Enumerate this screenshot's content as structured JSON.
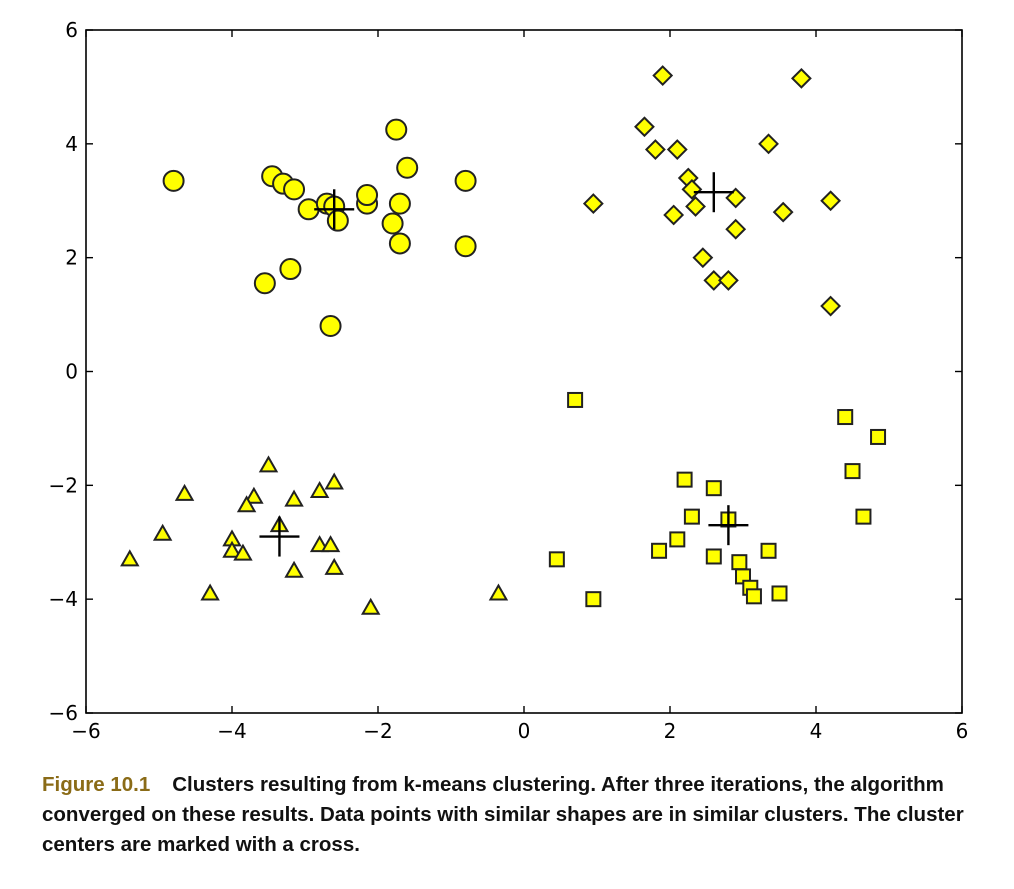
{
  "chart_data": {
    "type": "scatter",
    "xlim": [
      -6,
      6
    ],
    "ylim": [
      -6,
      6
    ],
    "grid": false,
    "x_ticks": [
      -6,
      -4,
      -2,
      0,
      2,
      4,
      6
    ],
    "y_ticks": [
      -6,
      -4,
      -2,
      0,
      2,
      4,
      6
    ],
    "x_tick_labels": [
      "−6",
      "−4",
      "−2",
      "0",
      "2",
      "4",
      "6"
    ],
    "y_tick_labels": [
      "−6",
      "−4",
      "−2",
      "0",
      "2",
      "4",
      "6"
    ],
    "marker_fill": "#ffff00",
    "marker_edge": "#222222",
    "series": [
      {
        "marker": "circle",
        "points": [
          [
            -4.8,
            3.35
          ],
          [
            -3.45,
            3.43
          ],
          [
            -3.3,
            3.3
          ],
          [
            -3.15,
            3.2
          ],
          [
            -2.95,
            2.85
          ],
          [
            -2.7,
            2.95
          ],
          [
            -2.6,
            2.9
          ],
          [
            -2.55,
            2.65
          ],
          [
            -2.15,
            2.95
          ],
          [
            -2.15,
            3.1
          ],
          [
            -1.75,
            4.25
          ],
          [
            -1.6,
            3.58
          ],
          [
            -1.7,
            2.95
          ],
          [
            -1.8,
            2.6
          ],
          [
            -1.7,
            2.25
          ],
          [
            -0.8,
            3.35
          ],
          [
            -0.8,
            2.2
          ],
          [
            -3.2,
            1.8
          ],
          [
            -3.55,
            1.55
          ],
          [
            -2.65,
            0.8
          ]
        ],
        "center": [
          -2.6,
          2.85
        ]
      },
      {
        "marker": "diamond",
        "points": [
          [
            1.9,
            5.2
          ],
          [
            3.8,
            5.15
          ],
          [
            1.65,
            4.3
          ],
          [
            1.8,
            3.9
          ],
          [
            2.1,
            3.9
          ],
          [
            3.35,
            4.0
          ],
          [
            2.25,
            3.4
          ],
          [
            2.3,
            3.2
          ],
          [
            2.35,
            2.9
          ],
          [
            2.9,
            3.05
          ],
          [
            4.2,
            3.0
          ],
          [
            0.95,
            2.95
          ],
          [
            2.05,
            2.75
          ],
          [
            3.55,
            2.8
          ],
          [
            2.9,
            2.5
          ],
          [
            2.45,
            2.0
          ],
          [
            2.6,
            1.6
          ],
          [
            2.8,
            1.6
          ],
          [
            4.2,
            1.15
          ]
        ],
        "center": [
          2.6,
          3.15
        ]
      },
      {
        "marker": "triangle",
        "points": [
          [
            -3.5,
            -1.65
          ],
          [
            -4.65,
            -2.15
          ],
          [
            -3.7,
            -2.2
          ],
          [
            -3.8,
            -2.35
          ],
          [
            -3.15,
            -2.25
          ],
          [
            -2.8,
            -2.1
          ],
          [
            -2.6,
            -1.95
          ],
          [
            -4.95,
            -2.85
          ],
          [
            -3.35,
            -2.7
          ],
          [
            -4.0,
            -2.95
          ],
          [
            -4.0,
            -3.15
          ],
          [
            -3.85,
            -3.2
          ],
          [
            -2.8,
            -3.05
          ],
          [
            -2.65,
            -3.05
          ],
          [
            -5.4,
            -3.3
          ],
          [
            -3.15,
            -3.5
          ],
          [
            -2.6,
            -3.45
          ],
          [
            -4.3,
            -3.9
          ],
          [
            -2.1,
            -4.15
          ],
          [
            -0.35,
            -3.9
          ]
        ],
        "center": [
          -3.35,
          -2.9
        ]
      },
      {
        "marker": "square",
        "points": [
          [
            0.7,
            -0.5
          ],
          [
            4.4,
            -0.8
          ],
          [
            4.85,
            -1.15
          ],
          [
            4.5,
            -1.75
          ],
          [
            4.65,
            -2.55
          ],
          [
            2.2,
            -1.9
          ],
          [
            2.6,
            -2.05
          ],
          [
            2.3,
            -2.55
          ],
          [
            2.8,
            -2.6
          ],
          [
            1.85,
            -3.15
          ],
          [
            2.1,
            -2.95
          ],
          [
            2.6,
            -3.25
          ],
          [
            2.95,
            -3.35
          ],
          [
            3.35,
            -3.15
          ],
          [
            0.45,
            -3.3
          ],
          [
            3.0,
            -3.6
          ],
          [
            3.1,
            -3.8
          ],
          [
            3.15,
            -3.95
          ],
          [
            3.5,
            -3.9
          ],
          [
            0.95,
            -4.0
          ]
        ],
        "center": [
          2.8,
          -2.7
        ]
      }
    ]
  },
  "caption": {
    "label": "Figure 10.1",
    "text": "Clusters resulting from k-means clustering. After three iterations, the algorithm converged on these results. Data points with similar shapes are in similar clusters. The cluster centers are marked with a cross."
  }
}
